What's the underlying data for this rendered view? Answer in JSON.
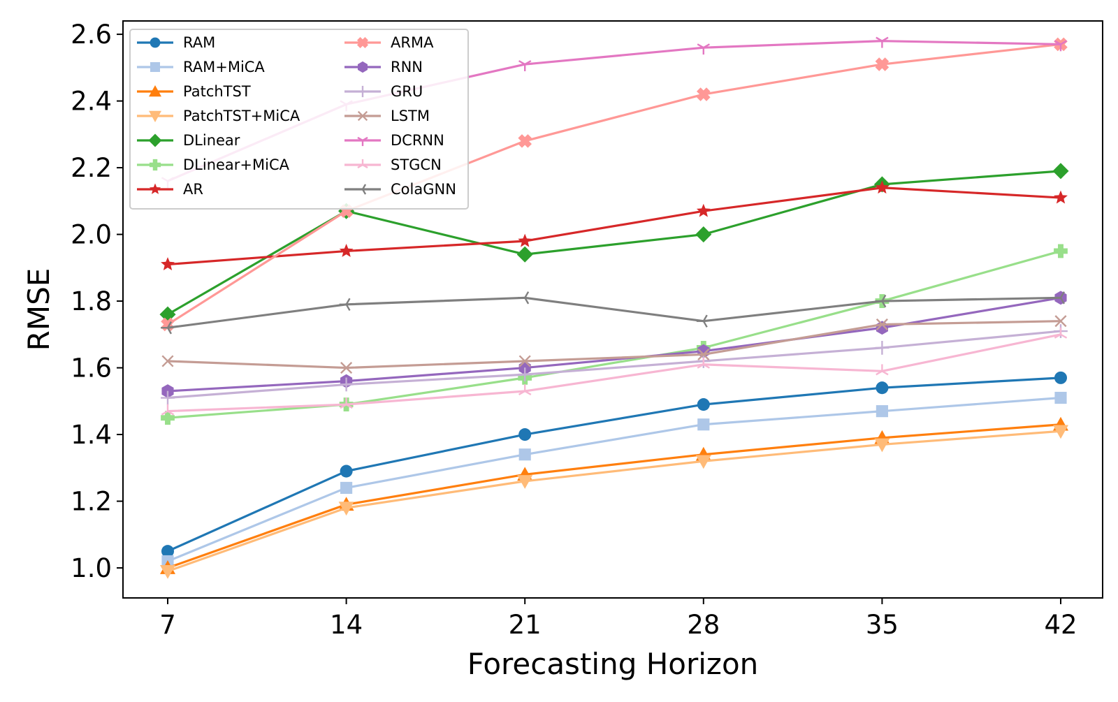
{
  "chart_data": {
    "type": "line",
    "xlabel": "Forecasting Horizon",
    "ylabel": "RMSE",
    "x": [
      7,
      14,
      21,
      28,
      35,
      42
    ],
    "x_tick_labels": [
      "7",
      "14",
      "21",
      "28",
      "35",
      "42"
    ],
    "y_ticks": [
      1.0,
      1.2,
      1.4,
      1.6,
      1.8,
      2.0,
      2.2,
      2.4,
      2.6
    ],
    "y_tick_labels": [
      "1.0",
      "1.2",
      "1.4",
      "1.6",
      "1.8",
      "2.0",
      "2.2",
      "2.4",
      "2.6"
    ],
    "ylim": [
      0.91,
      2.64
    ],
    "grid": false,
    "legend_position": "top-left",
    "legend_columns": 2,
    "series": [
      {
        "name": "RAM",
        "color": "#1f77b4",
        "marker": "circle",
        "values": [
          1.05,
          1.29,
          1.4,
          1.49,
          1.54,
          1.57
        ]
      },
      {
        "name": "RAM+MiCA",
        "color": "#aec7e8",
        "marker": "square",
        "values": [
          1.02,
          1.24,
          1.34,
          1.43,
          1.47,
          1.51
        ]
      },
      {
        "name": "PatchTST",
        "color": "#ff7f0e",
        "marker": "triangle-up",
        "values": [
          1.0,
          1.19,
          1.28,
          1.34,
          1.39,
          1.43
        ]
      },
      {
        "name": "PatchTST+MiCA",
        "color": "#ffbb78",
        "marker": "triangle-down",
        "values": [
          0.99,
          1.18,
          1.26,
          1.32,
          1.37,
          1.41
        ]
      },
      {
        "name": "DLinear",
        "color": "#2ca02c",
        "marker": "diamond",
        "values": [
          1.76,
          2.07,
          1.94,
          2.0,
          2.15,
          2.19
        ]
      },
      {
        "name": "DLinear+MiCA",
        "color": "#98df8a",
        "marker": "plus-filled",
        "values": [
          1.45,
          1.49,
          1.57,
          1.66,
          1.8,
          1.95
        ]
      },
      {
        "name": "AR",
        "color": "#d62728",
        "marker": "star",
        "values": [
          1.91,
          1.95,
          1.98,
          2.07,
          2.14,
          2.11
        ]
      },
      {
        "name": "ARMA",
        "color": "#ff9896",
        "marker": "x-filled",
        "values": [
          1.73,
          2.07,
          2.28,
          2.42,
          2.51,
          2.57
        ]
      },
      {
        "name": "RNN",
        "color": "#9467bd",
        "marker": "hexagon",
        "values": [
          1.53,
          1.56,
          1.6,
          1.65,
          1.72,
          1.81
        ]
      },
      {
        "name": "GRU",
        "color": "#c5b0d5",
        "marker": "plus",
        "values": [
          1.51,
          1.55,
          1.58,
          1.62,
          1.66,
          1.71
        ]
      },
      {
        "name": "LSTM",
        "color": "#c49c94",
        "marker": "x",
        "values": [
          1.62,
          1.6,
          1.62,
          1.64,
          1.73,
          1.74
        ]
      },
      {
        "name": "DCRNN",
        "color": "#e377c2",
        "marker": "tri-down",
        "values": [
          2.16,
          2.39,
          2.51,
          2.56,
          2.58,
          2.57
        ]
      },
      {
        "name": "STGCN",
        "color": "#f7b6d2",
        "marker": "tri-up",
        "values": [
          1.47,
          1.49,
          1.53,
          1.61,
          1.59,
          1.7
        ]
      },
      {
        "name": "ColaGNN",
        "color": "#7f7f7f",
        "marker": "tri-left",
        "values": [
          1.72,
          1.79,
          1.81,
          1.74,
          1.8,
          1.81
        ]
      }
    ]
  }
}
